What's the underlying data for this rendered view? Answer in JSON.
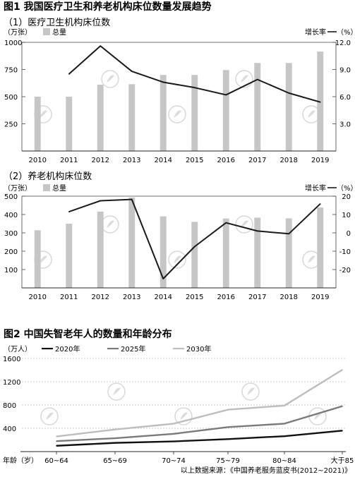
{
  "figure1": {
    "title": "图1  我国医疗卫生和养老机构床位数量发展趋势"
  },
  "figure2": {
    "title": "图2  中国失智老年人的数量和年龄分布"
  },
  "source_note": "以上数据来源：《中国养老服务蓝皮书(2012~2021)》",
  "chart_data": [
    {
      "type": "bar",
      "subtitle": "（1）医疗卫生机构床位数",
      "left_unit": "（万张）",
      "right_unit": "（%）",
      "bar_series_name": "总量",
      "line_series_name": "增长率",
      "categories": [
        "2010",
        "2011",
        "2012",
        "2013",
        "2014",
        "2015",
        "2016",
        "2017",
        "2018",
        "2019"
      ],
      "bar_values": [
        500,
        500,
        610,
        615,
        700,
        700,
        745,
        810,
        810,
        915
      ],
      "line_values": [
        null,
        8.5,
        11.6,
        8.8,
        7.6,
        7.0,
        6.2,
        7.9,
        6.4,
        5.4
      ],
      "ylim_left": [
        0,
        1000
      ],
      "ylim_right": [
        0,
        12
      ],
      "left_ticks": [
        "1000",
        "750",
        "500",
        "250"
      ],
      "right_ticks": [
        "12.0",
        "9.0",
        "6.0",
        "3.0"
      ],
      "bar_color": "#c6c6c6",
      "line_color": "#1a1a1a"
    },
    {
      "type": "bar",
      "subtitle": "（2）养老机构床位数",
      "left_unit": "（万张）",
      "right_unit": "（%）",
      "bar_series_name": "总量",
      "line_series_name": "增长率",
      "categories": [
        "2010",
        "2011",
        "2012",
        "2013",
        "2014",
        "2015",
        "2016",
        "2017",
        "2018",
        "2019"
      ],
      "bar_values": [
        314,
        350,
        416,
        493,
        390,
        360,
        378,
        383,
        379,
        438
      ],
      "line_values": [
        null,
        11.5,
        17.5,
        18.2,
        -25.0,
        -7.5,
        5.5,
        1.0,
        -0.5,
        15.8
      ],
      "ylim_left": [
        0,
        500
      ],
      "ylim_right": [
        -30,
        20
      ],
      "left_ticks": [
        "500",
        "400",
        "300",
        "200",
        "100"
      ],
      "right_ticks": [
        "20",
        "10",
        "0",
        "-10",
        "-20"
      ],
      "bar_color": "#c6c6c6",
      "line_color": "#1a1a1a"
    },
    {
      "type": "line",
      "unit": "（万人）",
      "categories": [
        "60~64",
        "65~69",
        "70~74",
        "75~79",
        "80~84",
        "大于85"
      ],
      "xlabel": "年龄（岁）",
      "ylim": [
        0,
        1600
      ],
      "y_ticks": [
        "1600",
        "1200",
        "800",
        "400"
      ],
      "series": [
        {
          "name": "2020年",
          "color": "#111111",
          "values": [
            100,
            150,
            175,
            215,
            265,
            360
          ]
        },
        {
          "name": "2025年",
          "color": "#7a7a7a",
          "values": [
            180,
            230,
            305,
            420,
            480,
            780
          ]
        },
        {
          "name": "2030年",
          "color": "#bdbdbd",
          "values": [
            260,
            380,
            480,
            720,
            790,
            1405
          ]
        }
      ]
    }
  ]
}
